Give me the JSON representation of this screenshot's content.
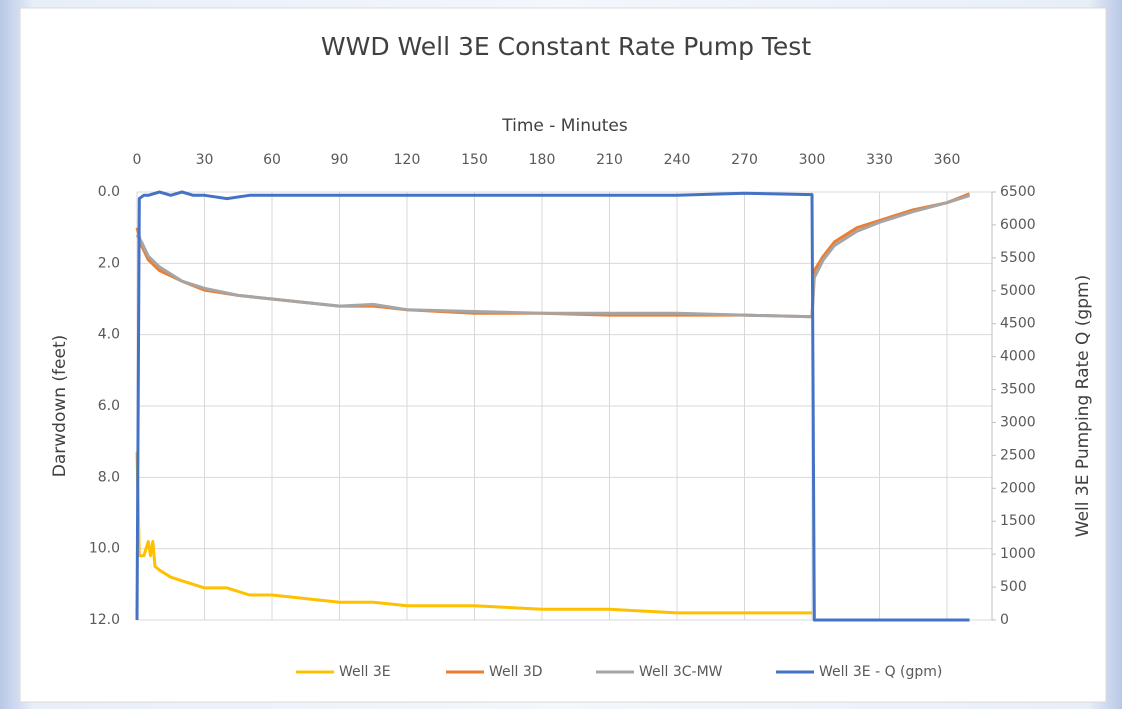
{
  "chart_data": {
    "type": "line",
    "title": "WWD Well 3E Constant Rate Pump Test",
    "x_label": "Time - Minutes",
    "y_label": "Darwdown (feet)",
    "y2_label": "Well 3E Pumping Rate Q (gpm)",
    "xlim": [
      0,
      380
    ],
    "xticks": [
      0,
      30,
      60,
      90,
      120,
      150,
      180,
      210,
      240,
      270,
      300,
      330,
      360
    ],
    "ylim": [
      12,
      0
    ],
    "yticks": [
      {
        "value": 0,
        "label": "0.0"
      },
      {
        "value": 2,
        "label": "2.0"
      },
      {
        "value": 4,
        "label": "4.0"
      },
      {
        "value": 6,
        "label": "6.0"
      },
      {
        "value": 8,
        "label": "8.0"
      },
      {
        "value": 10,
        "label": "10.0"
      },
      {
        "value": 12,
        "label": "12.0"
      }
    ],
    "y2lim": [
      0,
      6500
    ],
    "y2ticks": [
      0,
      500,
      1000,
      1500,
      2000,
      2500,
      3000,
      3500,
      4000,
      4500,
      5000,
      5500,
      6000,
      6500
    ],
    "grid": true,
    "legend": "bottom",
    "series": [
      {
        "name": "Well 3E",
        "color": "#ffc000",
        "x": [
          0,
          1,
          3,
          5,
          6,
          7,
          8,
          10,
          15,
          20,
          30,
          40,
          50,
          60,
          75,
          90,
          105,
          120,
          150,
          180,
          210,
          240,
          270,
          300
        ],
        "values": [
          7.3,
          10.2,
          10.2,
          9.8,
          10.2,
          9.8,
          10.5,
          10.6,
          10.8,
          10.9,
          11.1,
          11.1,
          11.3,
          11.3,
          11.4,
          11.5,
          11.5,
          11.6,
          11.6,
          11.7,
          11.7,
          11.8,
          11.8,
          11.8
        ]
      },
      {
        "name": "Well 3D",
        "color": "#ed7d31",
        "x": [
          0,
          2,
          5,
          10,
          20,
          30,
          45,
          60,
          90,
          105,
          120,
          150,
          180,
          210,
          240,
          270,
          300,
          301,
          305,
          310,
          320,
          330,
          345,
          360,
          370
        ],
        "values": [
          1.0,
          1.5,
          1.9,
          2.2,
          2.5,
          2.75,
          2.9,
          3.0,
          3.2,
          3.2,
          3.3,
          3.4,
          3.4,
          3.45,
          3.45,
          3.45,
          3.5,
          2.2,
          1.8,
          1.4,
          1.0,
          0.8,
          0.5,
          0.3,
          0.05
        ]
      },
      {
        "name": "Well 3C-MW",
        "color": "#a5a5a5",
        "x": [
          0,
          2,
          5,
          10,
          20,
          30,
          45,
          60,
          90,
          105,
          120,
          150,
          180,
          210,
          240,
          270,
          300,
          301,
          305,
          310,
          320,
          330,
          345,
          360,
          370
        ],
        "values": [
          1.2,
          1.4,
          1.8,
          2.1,
          2.5,
          2.7,
          2.9,
          3.0,
          3.2,
          3.15,
          3.3,
          3.35,
          3.4,
          3.4,
          3.4,
          3.45,
          3.5,
          2.4,
          1.9,
          1.5,
          1.1,
          0.85,
          0.55,
          0.3,
          0.1
        ]
      },
      {
        "name": "Well 3E - Q (gpm)",
        "color": "#4472c4",
        "axis": "y2",
        "x": [
          0,
          1,
          3,
          5,
          10,
          15,
          20,
          25,
          30,
          40,
          50,
          60,
          150,
          240,
          270,
          300,
          301,
          370
        ],
        "values": [
          0,
          6400,
          6450,
          6450,
          6500,
          6450,
          6500,
          6450,
          6450,
          6400,
          6450,
          6450,
          6450,
          6450,
          6480,
          6460,
          0,
          0
        ]
      }
    ]
  }
}
